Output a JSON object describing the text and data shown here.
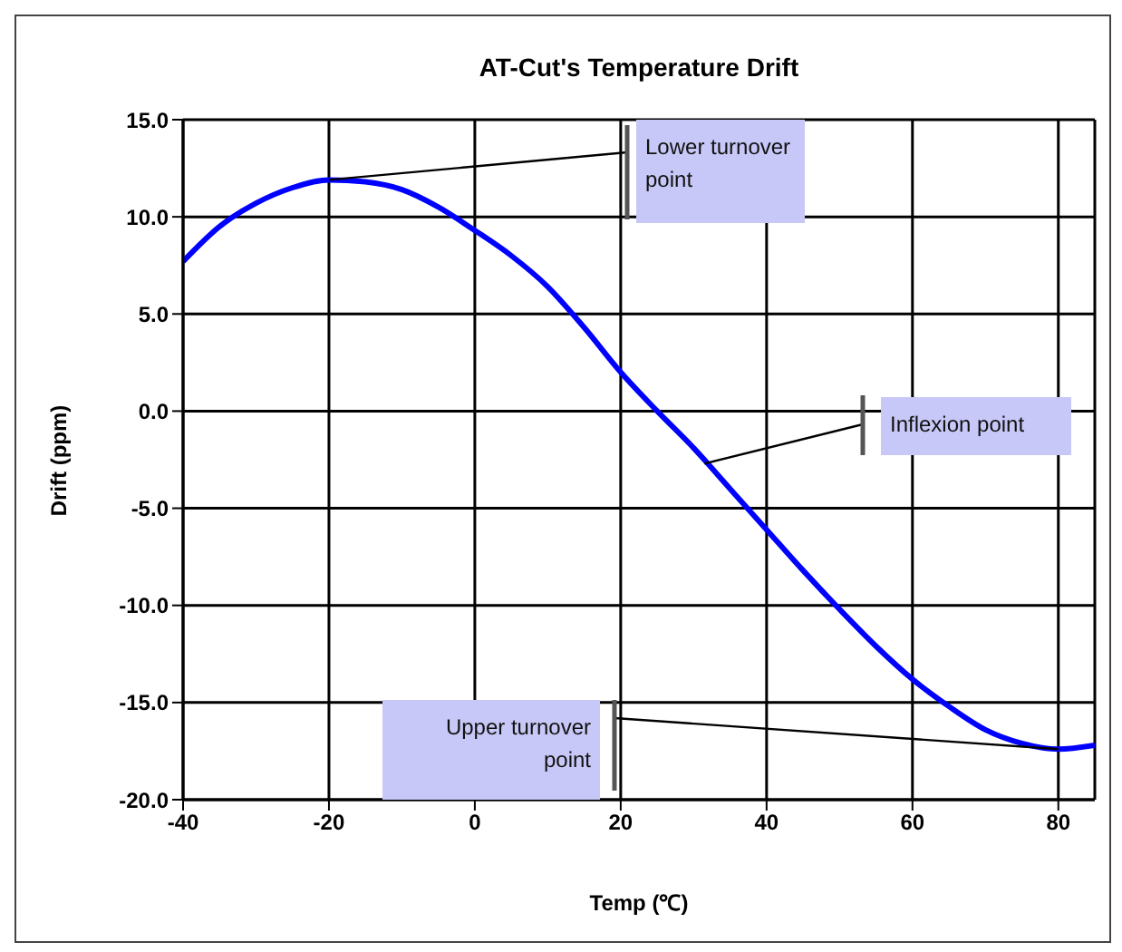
{
  "chart_data": {
    "type": "line",
    "title": "AT-Cut's Temperature Drift",
    "xlabel": "Temp (℃)",
    "ylabel": "Drift (ppm)",
    "x": [
      -40,
      -35,
      -30,
      -25,
      -20,
      -15,
      -10,
      -5,
      0,
      5,
      10,
      15,
      20,
      25,
      30,
      35,
      40,
      45,
      50,
      55,
      60,
      65,
      70,
      75,
      80,
      85
    ],
    "series": [
      {
        "color": "#0000ff",
        "values": [
          7.7,
          9.5,
          10.7,
          11.5,
          11.9,
          11.8,
          11.4,
          10.5,
          9.3,
          8.0,
          6.4,
          4.3,
          2.0,
          0.0,
          -1.9,
          -4.0,
          -6.1,
          -8.2,
          -10.2,
          -12.1,
          -13.8,
          -15.2,
          -16.4,
          -17.1,
          -17.4,
          -17.2
        ]
      }
    ],
    "xlim": [
      -40,
      85
    ],
    "xticks": [
      -40,
      -20,
      0,
      20,
      40,
      60,
      80
    ],
    "ylim": [
      -20,
      15
    ],
    "yticks": [
      {
        "value": -20,
        "label": "-20.0"
      },
      {
        "value": -15,
        "label": "-15.0"
      },
      {
        "value": -10,
        "label": "-10.0"
      },
      {
        "value": -5,
        "label": "-5.0"
      },
      {
        "value": 0,
        "label": "0.0"
      },
      {
        "value": 5,
        "label": "5.0"
      },
      {
        "value": 10,
        "label": "10.0"
      },
      {
        "value": 15,
        "label": "15.0"
      }
    ],
    "grid": true,
    "marker": "none",
    "line_style": "solid",
    "legend": false,
    "annotations": [
      {
        "text": "Lower turnover point",
        "x": -20,
        "y": 11.9
      },
      {
        "text": "Inflexion point",
        "x": 31.5,
        "y": -2.7
      },
      {
        "text": "Upper turnover point",
        "x": 80,
        "y": -17.4
      }
    ]
  }
}
